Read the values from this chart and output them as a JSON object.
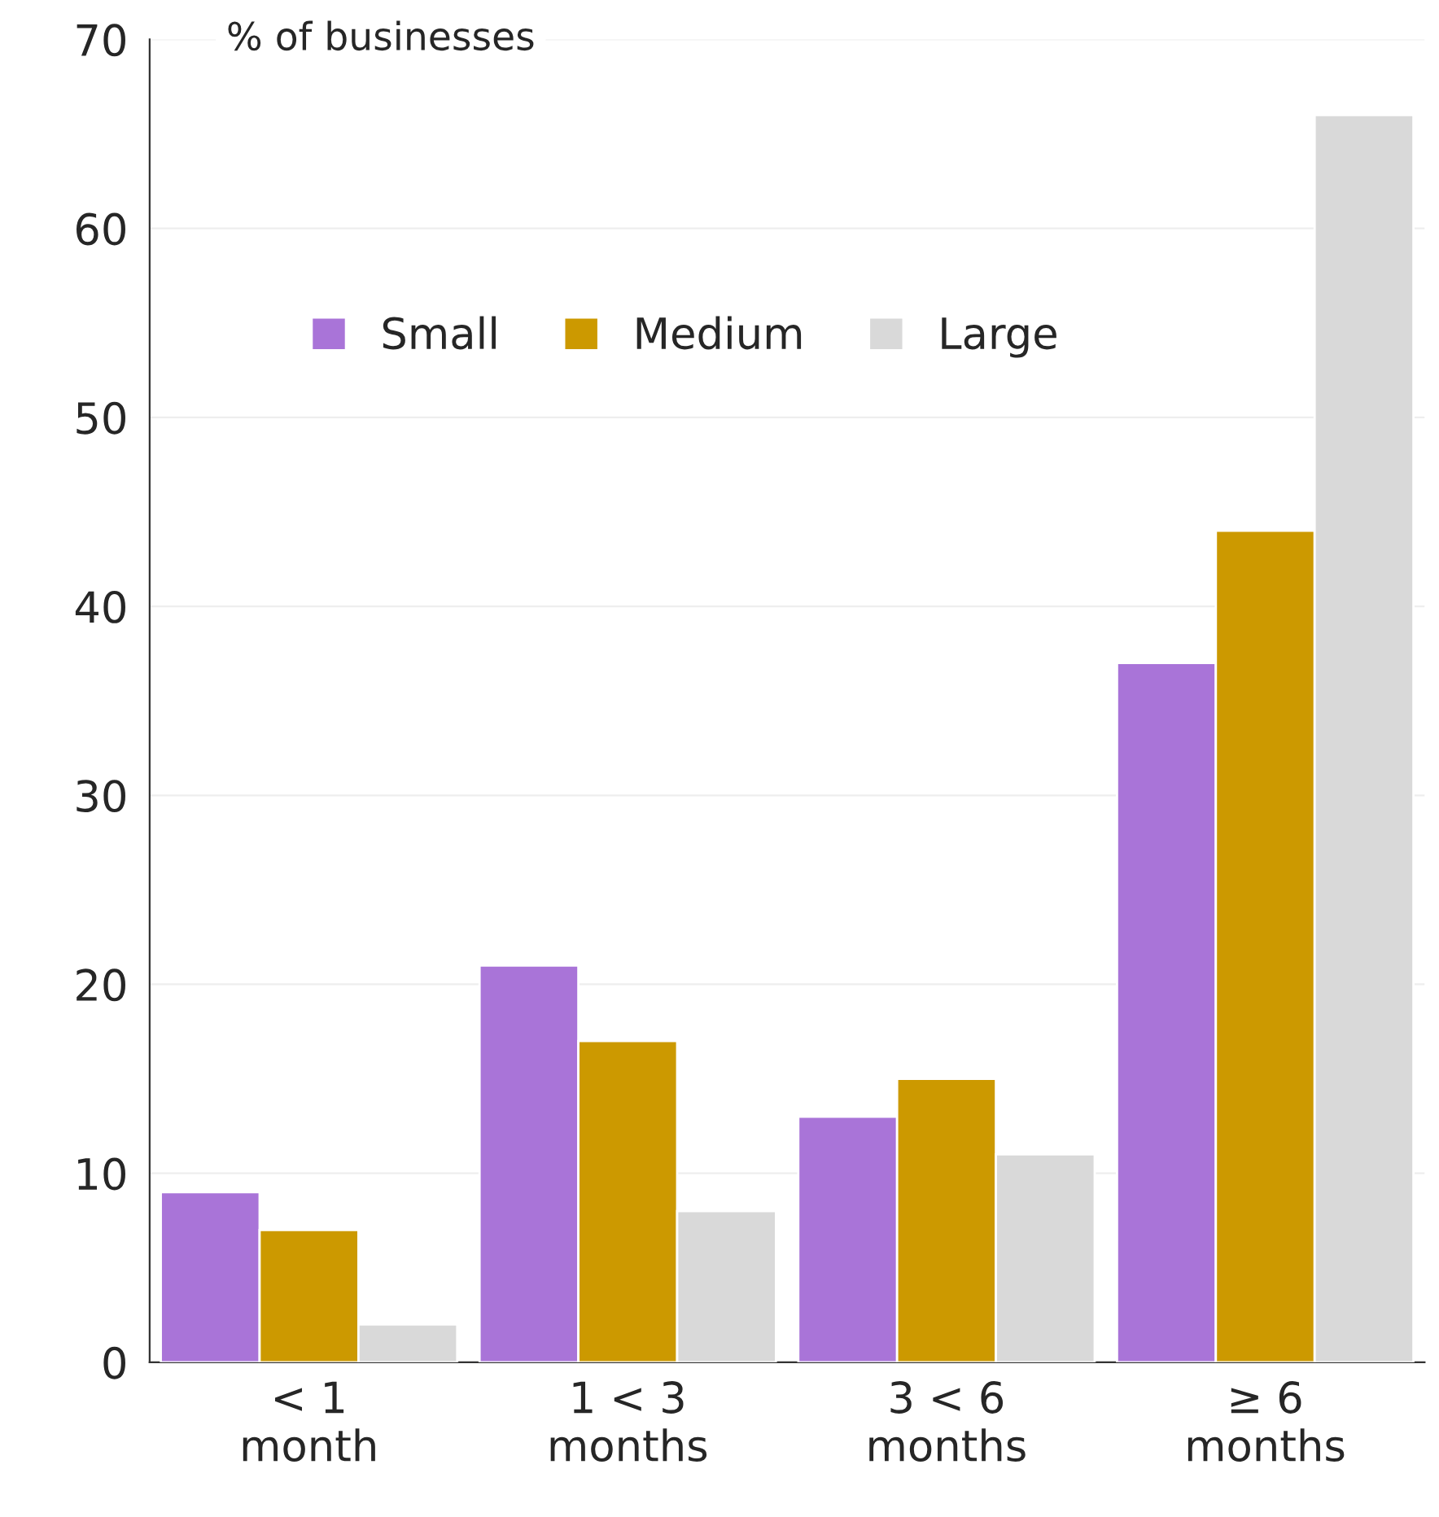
{
  "chart_data": {
    "type": "bar",
    "ylabel": "% of businesses",
    "categories": [
      "< 1\nmonth",
      "1 < 3\nmonths",
      "3 < 6\nmonths",
      "≥ 6\nmonths"
    ],
    "series": [
      {
        "name": "Small",
        "color": "#a974d8",
        "values": [
          9,
          21,
          13,
          37
        ]
      },
      {
        "name": "Medium",
        "color": "#cc9900",
        "values": [
          7,
          17,
          15,
          44
        ]
      },
      {
        "name": "Large",
        "color": "#d9d9d9",
        "values": [
          2,
          8,
          11,
          66
        ]
      }
    ],
    "ylim": [
      0,
      70
    ],
    "yticks": [
      0,
      10,
      20,
      30,
      40,
      50,
      60,
      70
    ],
    "grid": "y",
    "legend": "top"
  }
}
